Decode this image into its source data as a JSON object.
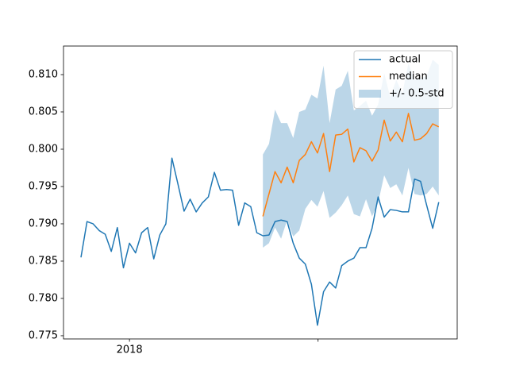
{
  "chart_data": {
    "type": "line",
    "x": [
      0,
      1,
      2,
      3,
      4,
      5,
      6,
      7,
      8,
      9,
      10,
      11,
      12,
      13,
      14,
      15,
      16,
      17,
      18,
      19,
      20,
      21,
      22,
      23,
      24,
      25,
      26,
      27,
      28,
      29,
      30,
      31,
      32,
      33,
      34,
      35,
      36,
      37,
      38,
      39,
      40,
      41,
      42,
      43,
      44,
      45,
      46,
      47,
      48,
      49,
      50,
      51,
      52,
      53,
      54,
      55,
      56,
      57,
      58,
      59
    ],
    "series": [
      {
        "name": "actual",
        "color": "#1f77b4",
        "values": [
          0.7855,
          0.7903,
          0.79,
          0.7891,
          0.7886,
          0.7863,
          0.7895,
          0.7841,
          0.7874,
          0.7861,
          0.7888,
          0.7895,
          0.7853,
          0.7885,
          0.79,
          0.7988,
          0.7953,
          0.7917,
          0.7933,
          0.7916,
          0.7928,
          0.7936,
          0.7969,
          0.7945,
          0.7946,
          0.7945,
          0.7898,
          0.7928,
          0.7923,
          0.7888,
          0.7884,
          0.7885,
          0.7903,
          0.7905,
          0.7903,
          0.7874,
          0.7854,
          0.7846,
          0.7819,
          0.7764,
          0.7809,
          0.7822,
          0.7814,
          0.7844,
          0.785,
          0.7854,
          0.7868,
          0.7868,
          0.7894,
          0.7936,
          0.7909,
          0.7919,
          0.7918,
          0.7916,
          0.7916,
          0.796,
          0.7957,
          0.7925,
          0.7894,
          0.7929
        ]
      },
      {
        "name": "median",
        "color": "#ff7f0e",
        "values": [
          null,
          null,
          null,
          null,
          null,
          null,
          null,
          null,
          null,
          null,
          null,
          null,
          null,
          null,
          null,
          null,
          null,
          null,
          null,
          null,
          null,
          null,
          null,
          null,
          null,
          null,
          null,
          null,
          null,
          null,
          0.791,
          0.794,
          0.797,
          0.7955,
          0.7976,
          0.7955,
          0.7985,
          0.7993,
          0.801,
          0.7995,
          0.8021,
          0.797,
          0.8019,
          0.802,
          0.8027,
          0.7983,
          0.8002,
          0.7998,
          0.7984,
          0.7999,
          0.8039,
          0.8011,
          0.8023,
          0.801,
          0.8048,
          0.8012,
          0.8014,
          0.8021,
          0.8034,
          0.803
        ]
      }
    ],
    "band": {
      "name": "+/- 0.5-std",
      "color": "#1f77b4",
      "upper": [
        null,
        null,
        null,
        null,
        null,
        null,
        null,
        null,
        null,
        null,
        null,
        null,
        null,
        null,
        null,
        null,
        null,
        null,
        null,
        null,
        null,
        null,
        null,
        null,
        null,
        null,
        null,
        null,
        null,
        null,
        0.7993,
        0.8007,
        0.8053,
        0.8035,
        0.8035,
        0.8015,
        0.805,
        0.8053,
        0.8073,
        0.8068,
        0.8112,
        0.8035,
        0.808,
        0.8085,
        0.8105,
        0.8052,
        0.8058,
        0.8065,
        0.8045,
        0.806,
        0.8102,
        0.807,
        0.8093,
        0.8075,
        0.8115,
        0.8093,
        0.8095,
        0.8098,
        0.812,
        0.8113
      ],
      "lower": [
        null,
        null,
        null,
        null,
        null,
        null,
        null,
        null,
        null,
        null,
        null,
        null,
        null,
        null,
        null,
        null,
        null,
        null,
        null,
        null,
        null,
        null,
        null,
        null,
        null,
        null,
        null,
        null,
        null,
        null,
        0.7868,
        0.7874,
        0.7895,
        0.788,
        0.7905,
        0.7883,
        0.7891,
        0.792,
        0.7932,
        0.7923,
        0.7944,
        0.7908,
        0.7915,
        0.7925,
        0.7938,
        0.7913,
        0.791,
        0.7933,
        0.791,
        0.7928,
        0.7965,
        0.7948,
        0.7953,
        0.7938,
        0.7975,
        0.794,
        0.7938,
        0.794,
        0.795,
        0.7938
      ]
    },
    "xlim": [
      -2.88,
      62.04
    ],
    "xticks": [
      {
        "value": 8,
        "label": "2018"
      },
      39.1
    ],
    "ylim": [
      0.77457,
      0.81383
    ],
    "yticks": [
      0.775,
      {
        "value": 0.78,
        "label": "0.780"
      },
      0.785,
      {
        "value": 0.79,
        "label": "0.790"
      },
      0.795,
      {
        "value": 0.8,
        "label": "0.800"
      },
      0.805,
      {
        "value": 0.81,
        "label": "0.810"
      }
    ],
    "legend": "upper right"
  }
}
